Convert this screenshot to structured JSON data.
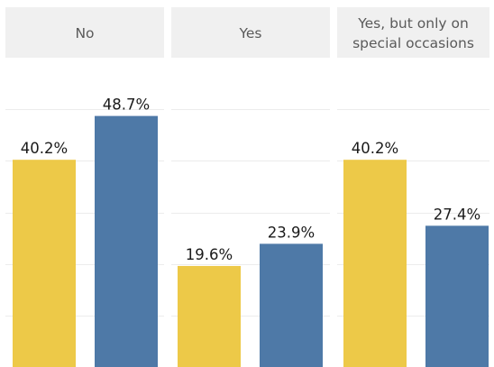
{
  "chart_data": {
    "type": "bar",
    "categories": [
      "No",
      "Yes",
      "Yes, but only on special occasions"
    ],
    "category_header_lines": [
      [
        "No"
      ],
      [
        "Yes"
      ],
      [
        "Yes, but only on",
        "special occasions"
      ]
    ],
    "series": [
      {
        "values": [
          40.2,
          19.6,
          40.2
        ],
        "color": "#EDC948"
      },
      {
        "values": [
          48.7,
          23.9,
          27.4
        ],
        "color": "#4E79A7"
      }
    ],
    "data_labels": [
      [
        "40.2%",
        "19.6%",
        "40.2%"
      ],
      [
        "48.7%",
        "23.9%",
        "27.4%"
      ]
    ],
    "value_unit": "%",
    "ylim": [
      0,
      60
    ],
    "grid": true,
    "legend": "none",
    "title": "",
    "xlabel": "",
    "ylabel": ""
  }
}
